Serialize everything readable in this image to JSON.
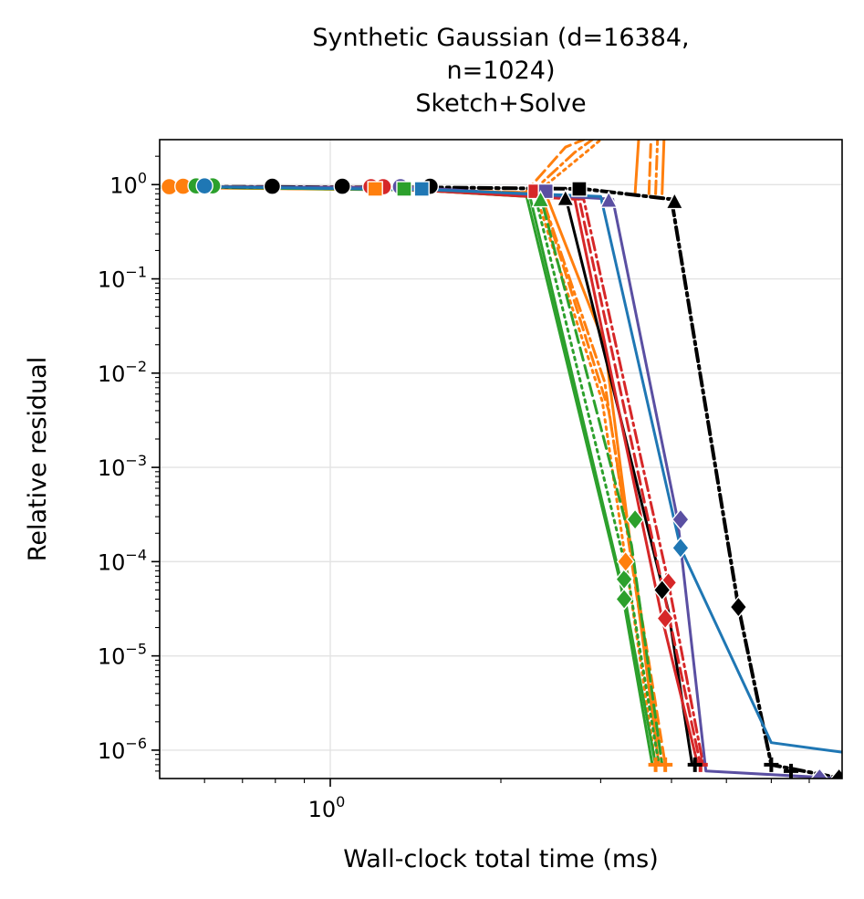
{
  "chart_data": {
    "type": "line",
    "title_lines": [
      "Synthetic Gaussian (d=16384,",
      "n=1024)",
      "Sketch+Solve"
    ],
    "xlabel": "Wall-clock total time (ms)",
    "ylabel": "Relative residual",
    "x_scale": "log",
    "y_scale": "log",
    "xlim": [
      0.5,
      8.0
    ],
    "ylim": [
      5e-07,
      3.0
    ],
    "x_major_ticks": [
      {
        "value": 1,
        "base": "10",
        "exp": "0"
      }
    ],
    "y_major_ticks": [
      {
        "value": 1,
        "base": "10",
        "exp": "0"
      },
      {
        "value": 0.1,
        "base": "10",
        "exp": "−1"
      },
      {
        "value": 0.01,
        "base": "10",
        "exp": "−2"
      },
      {
        "value": 0.001,
        "base": "10",
        "exp": "−3"
      },
      {
        "value": 0.0001,
        "base": "10",
        "exp": "−4"
      },
      {
        "value": 1e-05,
        "base": "10",
        "exp": "−5"
      },
      {
        "value": 1e-06,
        "base": "10",
        "exp": "−6"
      }
    ],
    "grid": true,
    "legend": "none",
    "colors": {
      "orange": "#ff7f0e",
      "green": "#2ca02c",
      "black": "#000000",
      "red": "#d62728",
      "purple": "#5a4fa2",
      "blue": "#1f77b4"
    },
    "series": [
      {
        "color": "orange",
        "dash": "solid",
        "width": 3,
        "markers": [],
        "points": [
          [
            0.5,
            0.93
          ],
          [
            1.3,
            0.88
          ],
          [
            2.4,
            0.8
          ],
          [
            3.05,
            0.02
          ],
          [
            3.8,
            7e-07
          ]
        ]
      },
      {
        "color": "orange",
        "dash": "dashdot",
        "width": 3,
        "markers": [],
        "points": [
          [
            0.5,
            0.95
          ],
          [
            1.25,
            0.9
          ],
          [
            2.35,
            0.82
          ],
          [
            3.05,
            0.008
          ],
          [
            3.85,
            7e-07
          ]
        ]
      },
      {
        "color": "orange",
        "dash": "dotted",
        "width": 3,
        "markers": [],
        "points": [
          [
            0.5,
            0.95
          ],
          [
            1.25,
            0.9
          ],
          [
            2.3,
            0.82
          ],
          [
            3.02,
            0.005
          ],
          [
            3.75,
            7e-07
          ]
        ]
      },
      {
        "color": "orange",
        "dash": "dashed",
        "width": 3,
        "markers": [],
        "points": [
          [
            0.5,
            0.94
          ],
          [
            1.3,
            0.88
          ],
          [
            2.35,
            0.8
          ],
          [
            3.1,
            0.004
          ],
          [
            3.9,
            7e-07
          ]
        ]
      },
      {
        "color": "orange",
        "dash": "dashed",
        "width": 3,
        "markers": [],
        "points": [
          [
            2.2,
            0.8
          ],
          [
            2.6,
            2.5
          ],
          [
            2.8,
            3.0
          ]
        ]
      },
      {
        "color": "orange",
        "dash": "dashdot",
        "width": 3,
        "markers": [],
        "points": [
          [
            2.25,
            0.8
          ],
          [
            2.7,
            2.2
          ],
          [
            2.9,
            3.0
          ]
        ]
      },
      {
        "color": "orange",
        "dash": "dotted",
        "width": 3,
        "markers": [],
        "points": [
          [
            2.3,
            0.8
          ],
          [
            2.85,
            2.3
          ],
          [
            3.0,
            3.0
          ]
        ]
      },
      {
        "color": "orange",
        "dash": "solid",
        "width": 3,
        "markers": [],
        "points": [
          [
            3.45,
            0.8
          ],
          [
            3.5,
            3.0
          ]
        ]
      },
      {
        "color": "orange",
        "dash": "dashed",
        "width": 3,
        "markers": [],
        "points": [
          [
            3.65,
            0.8
          ],
          [
            3.68,
            3.0
          ]
        ]
      },
      {
        "color": "orange",
        "dash": "dashdot",
        "width": 3,
        "markers": [],
        "points": [
          [
            3.75,
            0.8
          ],
          [
            3.78,
            3.0
          ]
        ]
      },
      {
        "color": "orange",
        "dash": "solid",
        "width": 3,
        "markers": [],
        "points": [
          [
            3.85,
            0.8
          ],
          [
            3.88,
            3.0
          ]
        ]
      },
      {
        "color": "green",
        "dash": "solid",
        "width": 3,
        "markers": [],
        "points": [
          [
            0.5,
            0.95
          ],
          [
            1.4,
            0.88
          ],
          [
            2.25,
            0.75
          ],
          [
            3.3,
            4.5e-05
          ],
          [
            3.75,
            7e-07
          ]
        ]
      },
      {
        "color": "green",
        "dash": "solid",
        "width": 3,
        "markers": [],
        "points": [
          [
            0.5,
            0.95
          ],
          [
            1.4,
            0.88
          ],
          [
            2.22,
            0.75
          ],
          [
            3.25,
            6e-05
          ],
          [
            3.7,
            7e-07
          ]
        ]
      },
      {
        "color": "green",
        "dash": "dotted",
        "width": 3,
        "markers": [],
        "points": [
          [
            0.6,
            0.95
          ],
          [
            1.45,
            0.88
          ],
          [
            2.3,
            0.75
          ],
          [
            3.35,
            7e-05
          ],
          [
            3.8,
            7e-07
          ]
        ]
      },
      {
        "color": "green",
        "dash": "dashed",
        "width": 3,
        "markers": [],
        "points": [
          [
            0.6,
            0.94
          ],
          [
            1.45,
            0.88
          ],
          [
            2.35,
            0.75
          ],
          [
            3.4,
            0.00015
          ],
          [
            3.85,
            7e-07
          ]
        ]
      },
      {
        "color": "black",
        "dash": "solid",
        "width": 3,
        "markers": [],
        "points": [
          [
            0.55,
            0.95
          ],
          [
            1.1,
            0.93
          ],
          [
            2.6,
            0.75
          ],
          [
            3.95,
            3e-05
          ],
          [
            4.35,
            7e-07
          ]
        ]
      },
      {
        "color": "black",
        "dash": "dashdot",
        "width": 4,
        "markers": [],
        "points": [
          [
            0.55,
            0.95
          ],
          [
            1.6,
            0.93
          ],
          [
            2.8,
            0.9
          ],
          [
            4.0,
            0.7
          ],
          [
            5.25,
            3.3e-05
          ],
          [
            6.0,
            7e-07
          ],
          [
            8.0,
            5e-07
          ]
        ]
      },
      {
        "color": "red",
        "dash": "solid",
        "width": 3,
        "markers": [],
        "points": [
          [
            0.55,
            0.95
          ],
          [
            1.2,
            0.93
          ],
          [
            2.7,
            0.7
          ],
          [
            3.85,
            2.5e-05
          ],
          [
            4.45,
            7e-07
          ]
        ]
      },
      {
        "color": "red",
        "dash": "dashed",
        "width": 3,
        "markers": [],
        "points": [
          [
            0.55,
            0.95
          ],
          [
            1.25,
            0.93
          ],
          [
            2.75,
            0.7
          ],
          [
            3.9,
            4e-05
          ],
          [
            4.5,
            7e-07
          ]
        ]
      },
      {
        "color": "red",
        "dash": "dashdot",
        "width": 3,
        "markers": [],
        "points": [
          [
            0.6,
            0.95
          ],
          [
            1.3,
            0.93
          ],
          [
            2.8,
            0.7
          ],
          [
            3.95,
            6e-05
          ],
          [
            4.55,
            7e-07
          ]
        ]
      },
      {
        "color": "purple",
        "dash": "solid",
        "width": 3,
        "markers": [],
        "points": [
          [
            0.6,
            0.95
          ],
          [
            1.4,
            0.93
          ],
          [
            3.15,
            0.7
          ],
          [
            4.1,
            0.00028
          ],
          [
            4.6,
            6e-07
          ],
          [
            8.0,
            5e-07
          ]
        ]
      },
      {
        "color": "blue",
        "dash": "solid",
        "width": 3,
        "markers": [],
        "points": [
          [
            0.6,
            0.95
          ],
          [
            1.5,
            0.88
          ],
          [
            3.0,
            0.75
          ],
          [
            4.15,
            0.00014
          ],
          [
            6.0,
            1.2e-06
          ],
          [
            8.0,
            9.5e-07
          ]
        ]
      }
    ],
    "marker_points": [
      {
        "color": "orange",
        "shape": "circle",
        "x": 0.52,
        "y": 0.95
      },
      {
        "color": "orange",
        "shape": "circle",
        "x": 0.55,
        "y": 0.96
      },
      {
        "color": "green",
        "shape": "circle",
        "x": 0.58,
        "y": 0.97
      },
      {
        "color": "green",
        "shape": "circle",
        "x": 0.62,
        "y": 0.97
      },
      {
        "color": "blue",
        "shape": "circle",
        "x": 0.6,
        "y": 0.97
      },
      {
        "color": "black",
        "shape": "circle",
        "x": 0.79,
        "y": 0.96
      },
      {
        "color": "black",
        "shape": "circle",
        "x": 1.05,
        "y": 0.96
      },
      {
        "color": "red",
        "shape": "circle",
        "x": 1.18,
        "y": 0.95
      },
      {
        "color": "red",
        "shape": "circle",
        "x": 1.24,
        "y": 0.95
      },
      {
        "color": "purple",
        "shape": "circle",
        "x": 1.33,
        "y": 0.95
      },
      {
        "color": "black",
        "shape": "circle",
        "x": 1.5,
        "y": 0.96
      },
      {
        "color": "orange",
        "shape": "square",
        "x": 1.2,
        "y": 0.9
      },
      {
        "color": "green",
        "shape": "square",
        "x": 1.35,
        "y": 0.9
      },
      {
        "color": "blue",
        "shape": "square",
        "x": 1.45,
        "y": 0.9
      },
      {
        "color": "red",
        "shape": "square",
        "x": 2.3,
        "y": 0.85
      },
      {
        "color": "purple",
        "shape": "square",
        "x": 2.4,
        "y": 0.85
      },
      {
        "color": "black",
        "shape": "square",
        "x": 2.75,
        "y": 0.9
      },
      {
        "color": "green",
        "shape": "triangle",
        "x": 2.35,
        "y": 0.68
      },
      {
        "color": "black",
        "shape": "triangle",
        "x": 2.6,
        "y": 0.7
      },
      {
        "color": "purple",
        "shape": "triangle",
        "x": 3.1,
        "y": 0.67
      },
      {
        "color": "black",
        "shape": "triangle",
        "x": 4.05,
        "y": 0.65
      },
      {
        "color": "green",
        "shape": "diamond",
        "x": 3.3,
        "y": 4e-05
      },
      {
        "color": "green",
        "shape": "diamond",
        "x": 3.3,
        "y": 6.5e-05
      },
      {
        "color": "orange",
        "shape": "diamond",
        "x": 3.32,
        "y": 0.0001
      },
      {
        "color": "green",
        "shape": "diamond",
        "x": 3.45,
        "y": 0.00028
      },
      {
        "color": "red",
        "shape": "diamond",
        "x": 3.9,
        "y": 2.5e-05
      },
      {
        "color": "red",
        "shape": "diamond",
        "x": 3.95,
        "y": 6e-05
      },
      {
        "color": "black",
        "shape": "diamond",
        "x": 3.85,
        "y": 5e-05
      },
      {
        "color": "purple",
        "shape": "diamond",
        "x": 4.15,
        "y": 0.00028
      },
      {
        "color": "blue",
        "shape": "diamond",
        "x": 4.15,
        "y": 0.00014
      },
      {
        "color": "black",
        "shape": "diamond",
        "x": 5.25,
        "y": 3.3e-05
      },
      {
        "color": "orange",
        "shape": "plus",
        "x": 3.75,
        "y": 7e-07
      },
      {
        "color": "orange",
        "shape": "plus",
        "x": 3.9,
        "y": 7e-07
      },
      {
        "color": "red",
        "shape": "plus",
        "x": 4.5,
        "y": 7e-07
      },
      {
        "color": "black",
        "shape": "plus",
        "x": 4.4,
        "y": 7e-07
      },
      {
        "color": "black",
        "shape": "plus",
        "x": 6.0,
        "y": 7e-07
      },
      {
        "color": "black",
        "shape": "plus",
        "x": 6.5,
        "y": 6e-07
      },
      {
        "color": "purple",
        "shape": "diamond",
        "x": 7.3,
        "y": 5e-07
      },
      {
        "color": "black",
        "shape": "diamond",
        "x": 7.9,
        "y": 5e-07
      }
    ]
  }
}
